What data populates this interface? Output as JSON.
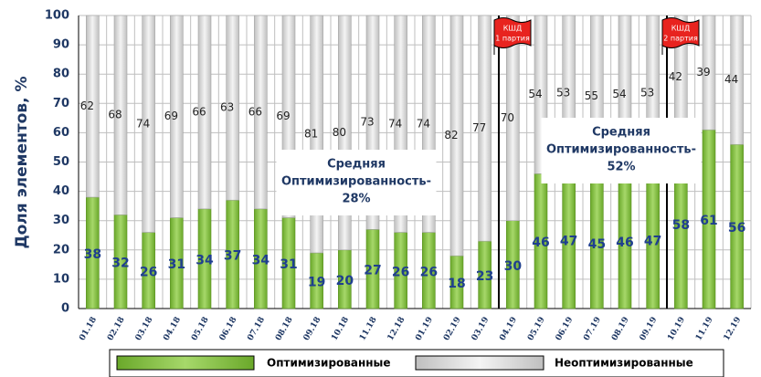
{
  "chart_data": {
    "type": "stacked_bar",
    "y_label": "Доля элементов, %",
    "categories": [
      "01.18",
      "02.18",
      "03.18",
      "04.18",
      "05.18",
      "06.18",
      "07.18",
      "08.18",
      "09.18",
      "10.18",
      "11.18",
      "12.18",
      "01.19",
      "02.19",
      "03.19",
      "04.19",
      "05.19",
      "06.19",
      "07.19",
      "08.19",
      "09.19",
      "10.19",
      "11.19",
      "12.19"
    ],
    "series": [
      {
        "name": "Оптимизированные",
        "color": "#8cc63f",
        "values": [
          38,
          32,
          26,
          31,
          34,
          37,
          34,
          31,
          19,
          20,
          27,
          26,
          26,
          18,
          23,
          30,
          46,
          47,
          45,
          46,
          47,
          58,
          61,
          56
        ]
      },
      {
        "name": "Неоптимизированные",
        "color": "#d9d9d9",
        "values": [
          62,
          68,
          74,
          69,
          66,
          63,
          66,
          69,
          81,
          80,
          73,
          74,
          74,
          82,
          77,
          70,
          54,
          53,
          55,
          54,
          53,
          42,
          39,
          44
        ]
      }
    ],
    "ylim": [
      0,
      100
    ],
    "yticks": [
      0,
      10,
      20,
      30,
      40,
      50,
      60,
      70,
      80,
      90,
      100
    ],
    "grid": true,
    "annotations": [
      {
        "lines": [
          "Средняя",
          "Оптимизированность-",
          "28%"
        ]
      },
      {
        "lines": [
          "Средняя",
          "Оптимизированность-",
          "52%"
        ]
      }
    ],
    "flags": [
      {
        "lines": [
          "КШД",
          "1 партия"
        ]
      },
      {
        "lines": [
          "КШД",
          "2 партия"
        ]
      }
    ]
  }
}
